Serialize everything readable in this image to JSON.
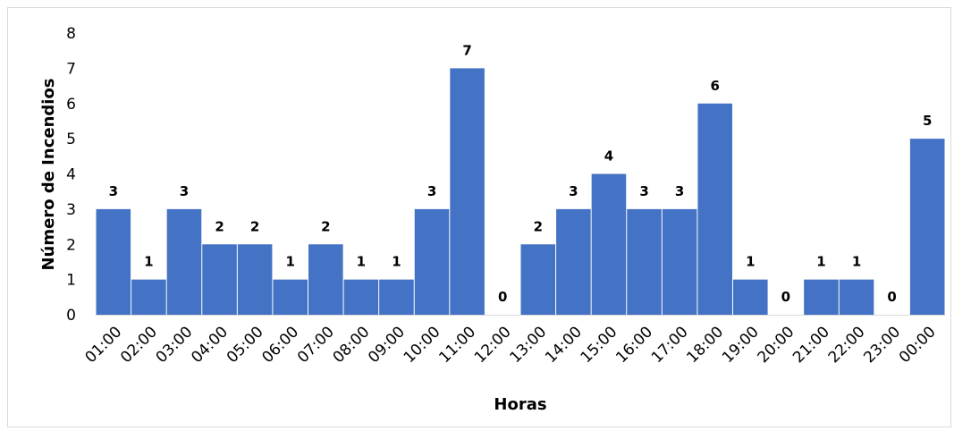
{
  "chart_data": {
    "type": "bar",
    "title": "",
    "xlabel": "Horas",
    "ylabel": "Número de Incendios",
    "categories": [
      "01:00",
      "02:00",
      "03:00",
      "04:00",
      "05:00",
      "06:00",
      "07:00",
      "08:00",
      "09:00",
      "10:00",
      "11:00",
      "12:00",
      "13:00",
      "14:00",
      "15:00",
      "16:00",
      "17:00",
      "18:00",
      "19:00",
      "20:00",
      "21:00",
      "22:00",
      "23:00",
      "00:00"
    ],
    "values": [
      3,
      1,
      3,
      2,
      2,
      1,
      2,
      1,
      1,
      3,
      7,
      0,
      2,
      3,
      4,
      3,
      3,
      6,
      1,
      0,
      1,
      1,
      0,
      5
    ],
    "ylim": [
      0,
      8
    ],
    "yticks": [
      0,
      1,
      2,
      3,
      4,
      5,
      6,
      7,
      8
    ],
    "grid": false,
    "legend": "none",
    "data_labels": true,
    "bar_color": "#4472c4"
  }
}
